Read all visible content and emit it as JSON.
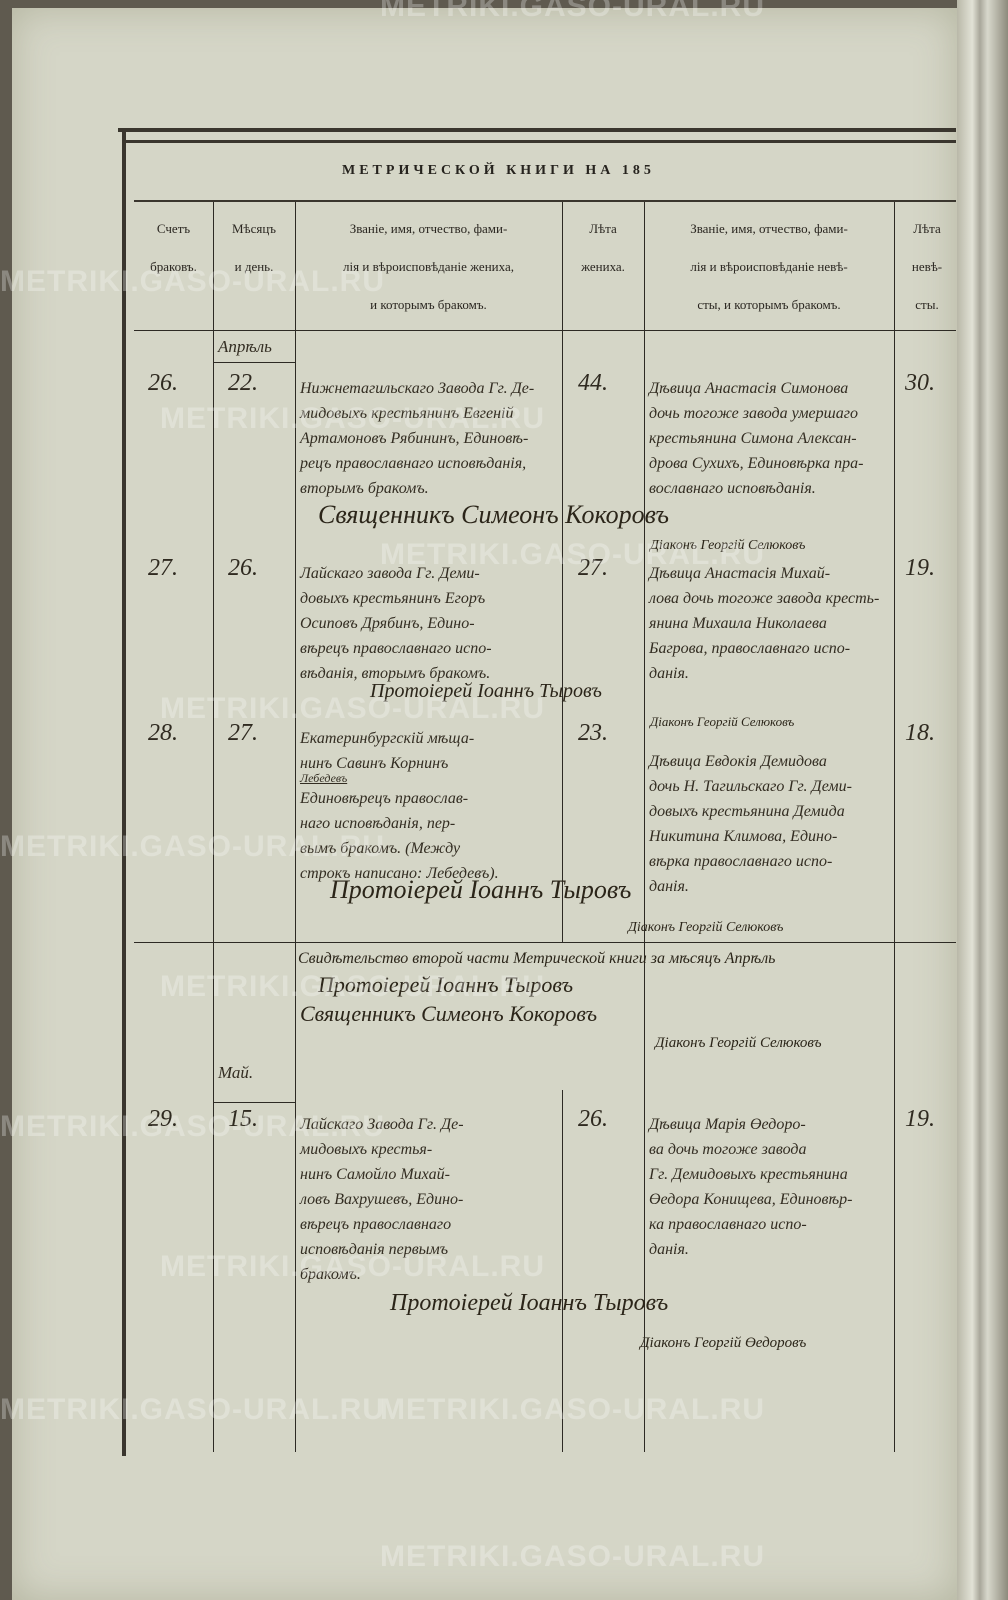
{
  "header": {
    "title": "МЕТРИЧЕСКОЙ КНИГИ НА 185",
    "columns": [
      [
        "Счетъ",
        "браковъ."
      ],
      [
        "Мѣсяцъ",
        "и день."
      ],
      [
        "Званіе, имя, отчество, фами-",
        "лія и вѣроисповѣданіе жениха,",
        "и которымъ бракомъ."
      ],
      [
        "Лѣта",
        "жениха."
      ],
      [
        "Званіе, имя, отчество, фами-",
        "лія и вѣроисповѣданіе невѣ-",
        "сты, и которымъ бракомъ."
      ],
      [
        "Лѣта",
        "невѣ-",
        "сты."
      ]
    ]
  },
  "entries": [
    {
      "month": "Апрѣль",
      "number": "26.",
      "day": "22.",
      "groom_age": "44.",
      "bride_age": "30.",
      "groom": [
        "Нижнетагильскаго Завода Гг. Де-",
        "мидовыхъ крестьянинъ Евгеній",
        "Артамоновъ Рябининъ, Единовѣ-",
        "рецъ православнаго исповѣданія,",
        "вторымъ бракомъ."
      ],
      "bride": [
        "Дѣвица Анастасія Симонова",
        "дочь тогоже завода умершаго",
        "крестьянина Симона Алексан-",
        "дрова Сухихъ, Единовѣрка пра-",
        "вославнаго исповѣданія."
      ]
    },
    {
      "number": "27.",
      "day": "26.",
      "groom_age": "27.",
      "bride_age": "19.",
      "groom": [
        "Лайскаго завода Гг. Деми-",
        "довыхъ крестьянинъ Егоръ",
        "Осиповъ Дрябинъ, Едино-",
        "вѣрецъ православнаго испо-",
        "вѣданія, вторымъ бракомъ."
      ],
      "bride": [
        "Дѣвица Анастасія Михай-",
        "лова дочь тогоже завода кресть-",
        "янина Михаила Николаева",
        "Багрова, православнаго испо-",
        "данія."
      ]
    },
    {
      "number": "28.",
      "day": "27.",
      "groom_age": "23.",
      "bride_age": "18.",
      "groom": [
        "Екатеринбургскій мѣща-",
        "нинъ Савинъ Корнинъ",
        "Единовѣрецъ православ-",
        "наго исповѣданія, пер-",
        "вымъ бракомъ. (Между",
        "строкъ написано: Лебедевъ)."
      ],
      "groom_interlinear": "Лебедевъ",
      "bride": [
        "Дѣвица Евдокія Демидова",
        "дочь Н. Тагильскаго Гг. Деми-",
        "довыхъ крестьянина Демида",
        "Никитина Климова, Едино-",
        "вѣрка православнаго испо-",
        "данія."
      ]
    },
    {
      "month": "Май.",
      "number": "29.",
      "day": "15.",
      "groom_age": "26.",
      "bride_age": "19.",
      "groom": [
        "Лайскаго Завода Гг. Де-",
        "мидовыхъ крестья-",
        "нинъ Самойло Михай-",
        "ловъ Вахрушевъ, Едино-",
        "вѣрецъ православнаго",
        "исповѣданія первымъ",
        "бракомъ."
      ],
      "bride": [
        "Дѣвица Марія Өедоро-",
        "ва дочь тогоже завода",
        "Гг. Демидовыхъ крестьянина",
        "Өедора Конищева, Единовѣр-",
        "ка православнаго испо-",
        "данія."
      ]
    }
  ],
  "signatures": {
    "priest_1": "Священникъ Симеонъ Кокоровъ",
    "deacon_1": "Діаконъ Георгій Селюковъ",
    "archpriest_2": "Протоіерей Іоаннъ Тыровъ",
    "deacon_2": "Діаконъ Георгій Селюковъ",
    "archpriest_3": "Протоіерей Іоаннъ Тыровъ",
    "deacon_3": "Діаконъ Георгій Селюковъ",
    "certification": "Свидѣтельство второй части Метрической книги за мѣсяцъ Апрѣль",
    "cert_archpriest": "Протоіерей Іоаннъ Тыровъ",
    "cert_priest": "Священникъ Симеонъ Кокоровъ",
    "cert_deacon": "Діаконъ Георгій Селюковъ",
    "archpriest_4": "Протоіерей Іоаннъ Тыровъ",
    "deacon_4": "Діаконъ Георгій Өедоровъ"
  },
  "watermark": "METRIKI.GASO-URAL.RU",
  "colors": {
    "paper": "#d5d6c7",
    "ink": "#332d22",
    "background": "#5f5a4f"
  }
}
